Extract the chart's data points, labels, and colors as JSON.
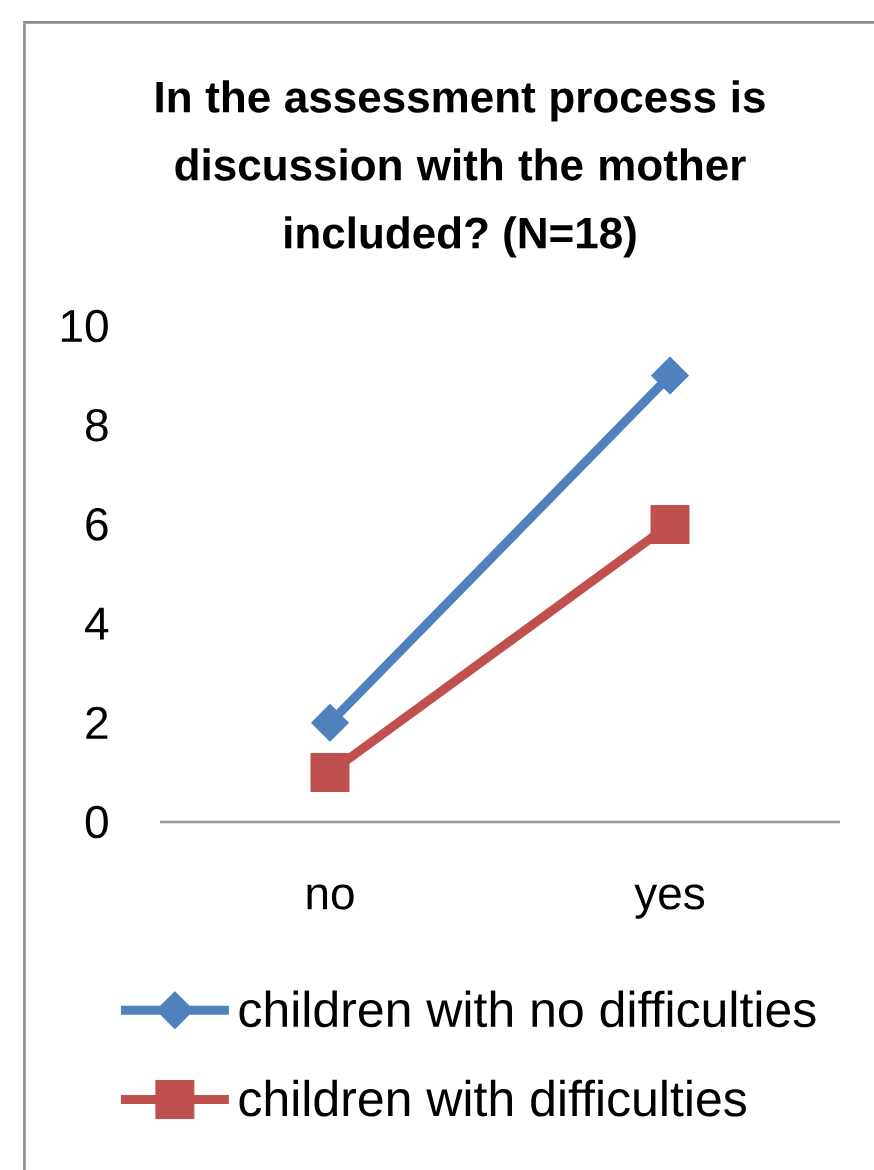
{
  "chart_data": {
    "type": "line",
    "title": "In the assessment process is discussion with the mother included? (N=18)",
    "categories": [
      "no",
      "yes"
    ],
    "series": [
      {
        "name": "children with no difficulties",
        "color": "#4f81bd",
        "values": [
          2,
          9
        ],
        "marker": "diamond"
      },
      {
        "name": "children with difficulties",
        "color": "#c0504d",
        "values": [
          1,
          6
        ],
        "marker": "square"
      }
    ],
    "ylim": [
      0,
      10
    ],
    "yticks": [
      0,
      2,
      4,
      6,
      8,
      10
    ],
    "legend": "bottom"
  }
}
